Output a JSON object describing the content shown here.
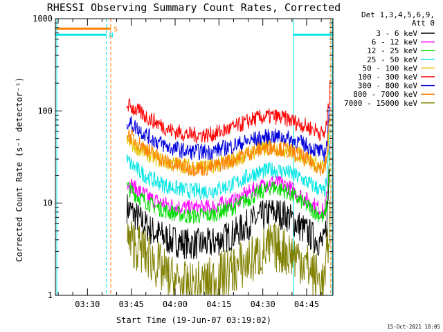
{
  "chart_data": {
    "type": "line",
    "title": "RHESSI Observing Summary Count Rates, Corrected",
    "xlabel": "Start Time (19-Jun-07 03:19:02)",
    "ylabel": "Corrected Count Rate (s⁻¹ detector⁻¹)",
    "y_scale": "log",
    "ylim": [
      1,
      1000
    ],
    "xlim": [
      "03:19:02",
      "04:54:00"
    ],
    "x_ticks": [
      "03:30",
      "03:45",
      "04:00",
      "04:15",
      "04:30",
      "04:45"
    ],
    "y_ticks": [
      "1",
      "10",
      "100",
      "1000"
    ],
    "legend_header": [
      "Det 1,3,4,5,6,9,",
      "Att 0"
    ],
    "legend_position": "top-right, outside plot",
    "footer": "15-Oct-2021 18:05",
    "series": [
      {
        "name": "3 - 6 keV",
        "color": "#000000",
        "x": [
          "03:43:30",
          "03:47:00",
          "03:52:00",
          "03:58:00",
          "04:05:00",
          "04:12:00",
          "04:20:00",
          "04:27:00",
          "04:33:00",
          "04:38:00",
          "04:43:00",
          "04:48:00",
          "04:51:00",
          "04:52:00",
          "04:53:00"
        ],
        "values": [
          9,
          7,
          5,
          4,
          3.6,
          3.6,
          4.6,
          6.5,
          8,
          7.4,
          5.5,
          4.1,
          3.6,
          7,
          30
        ]
      },
      {
        "name": "6 - 12 keV",
        "color": "#ff00ff",
        "x": [
          "03:43:30",
          "03:47:00",
          "03:52:00",
          "03:58:00",
          "04:05:00",
          "04:12:00",
          "04:20:00",
          "04:27:00",
          "04:33:00",
          "04:38:00",
          "04:43:00",
          "04:48:00",
          "04:51:00",
          "04:52:00",
          "04:53:00"
        ],
        "values": [
          17,
          14,
          11,
          9.5,
          8.8,
          9,
          10.5,
          14,
          17,
          15.5,
          12,
          9.3,
          8,
          12,
          45
        ]
      },
      {
        "name": "12 - 25 keV",
        "color": "#00dd00",
        "x": [
          "03:43:30",
          "03:47:00",
          "03:52:00",
          "03:58:00",
          "04:05:00",
          "04:12:00",
          "04:20:00",
          "04:27:00",
          "04:33:00",
          "04:38:00",
          "04:43:00",
          "04:48:00",
          "04:51:00",
          "04:52:00",
          "04:53:00"
        ],
        "values": [
          15,
          12,
          9.5,
          8,
          7.2,
          7.4,
          9,
          12,
          15,
          13.5,
          10.5,
          8,
          6.8,
          10,
          40
        ]
      },
      {
        "name": "25 - 50 keV",
        "color": "#00e5e5",
        "x": [
          "03:43:30",
          "03:47:00",
          "03:52:00",
          "03:58:00",
          "04:05:00",
          "04:12:00",
          "04:20:00",
          "04:27:00",
          "04:33:00",
          "04:38:00",
          "04:43:00",
          "04:48:00",
          "04:51:00",
          "04:52:00",
          "04:53:00"
        ],
        "values": [
          29,
          23,
          18,
          15,
          13.5,
          13.5,
          16,
          21,
          23,
          22,
          18.5,
          15,
          13,
          18,
          60
        ]
      },
      {
        "name": "50 - 100 keV",
        "color": "#e6c300",
        "x": [
          "03:43:30",
          "03:47:00",
          "03:52:00",
          "03:58:00",
          "04:05:00",
          "04:12:00",
          "04:20:00",
          "04:27:00",
          "04:33:00",
          "04:38:00",
          "04:43:00",
          "04:48:00",
          "04:51:00",
          "04:52:00",
          "04:53:00"
        ],
        "values": [
          47,
          40,
          32,
          27,
          25,
          25,
          29,
          36,
          40,
          38,
          33,
          27,
          24,
          30,
          80
        ]
      },
      {
        "name": "100 - 300 keV",
        "color": "#ff0000",
        "x": [
          "03:43:30",
          "03:47:00",
          "03:52:00",
          "03:58:00",
          "04:05:00",
          "04:12:00",
          "04:20:00",
          "04:27:00",
          "04:33:00",
          "04:38:00",
          "04:43:00",
          "04:48:00",
          "04:51:00",
          "04:52:00",
          "04:53:00"
        ],
        "values": [
          118,
          100,
          80,
          62,
          55,
          55,
          66,
          82,
          88,
          82,
          72,
          62,
          55,
          75,
          175
        ]
      },
      {
        "name": "300 - 800 keV",
        "color": "#0000dd",
        "x": [
          "03:43:30",
          "03:47:00",
          "03:52:00",
          "03:58:00",
          "04:05:00",
          "04:12:00",
          "04:20:00",
          "04:27:00",
          "04:33:00",
          "04:38:00",
          "04:43:00",
          "04:48:00",
          "04:51:00",
          "04:52:00",
          "04:53:00"
        ],
        "values": [
          78,
          65,
          50,
          40,
          36,
          36,
          42,
          49,
          53,
          51,
          45,
          38,
          34,
          45,
          130
        ]
      },
      {
        "name": "800 - 7000 keV",
        "color": "#ff8000",
        "x": [
          "03:43:30",
          "03:47:00",
          "03:52:00",
          "03:58:00",
          "04:05:00",
          "04:12:00",
          "04:20:00",
          "04:27:00",
          "04:33:00",
          "04:38:00",
          "04:43:00",
          "04:48:00",
          "04:51:00",
          "04:52:00",
          "04:53:00"
        ],
        "values": [
          58,
          46,
          35,
          27,
          24,
          24,
          30,
          37,
          41,
          38,
          32,
          26,
          23,
          32,
          110
        ]
      },
      {
        "name": "7000 - 15000 keV",
        "color": "#808000",
        "x": [
          "03:43:30",
          "03:47:00",
          "03:52:00",
          "03:58:00",
          "04:05:00",
          "04:12:00",
          "04:20:00",
          "04:27:00",
          "04:33:00",
          "04:38:00",
          "04:43:00",
          "04:48:00",
          "04:51:00",
          "04:52:00",
          "04:53:00"
        ],
        "values": [
          4,
          3.4,
          2.5,
          1.5,
          1.2,
          1.4,
          1.9,
          2.5,
          3.4,
          3,
          2.5,
          1.6,
          1.3,
          2.5,
          8
        ]
      }
    ],
    "flags": [
      {
        "label": "S",
        "color": "#ff8000",
        "x_start": "03:19:02",
        "x_end": "03:38:00",
        "level": 780
      },
      {
        "label": "N",
        "color": "#00e5e5",
        "x_start": "03:19:02",
        "x_end": "03:36:30",
        "level": 670
      },
      {
        "label": "",
        "color": "#00e5e5",
        "x_start": "04:40:30",
        "x_end": "04:54:00",
        "level": 670
      }
    ],
    "markers": [
      {
        "color": "#ff8000",
        "style": "dashed",
        "x": "03:38:00"
      },
      {
        "color": "#00e5e5",
        "style": "dashed",
        "x": "03:36:30"
      },
      {
        "color": "#00e5e5",
        "style": "solid",
        "x": "03:19:30"
      },
      {
        "color": "#00e5e5",
        "style": "solid",
        "x": "04:40:30"
      },
      {
        "color": "#ff8000",
        "style": "dashed",
        "x": "04:53:15"
      },
      {
        "color": "#00e5e5",
        "style": "solid",
        "x": "04:53:45"
      }
    ]
  }
}
